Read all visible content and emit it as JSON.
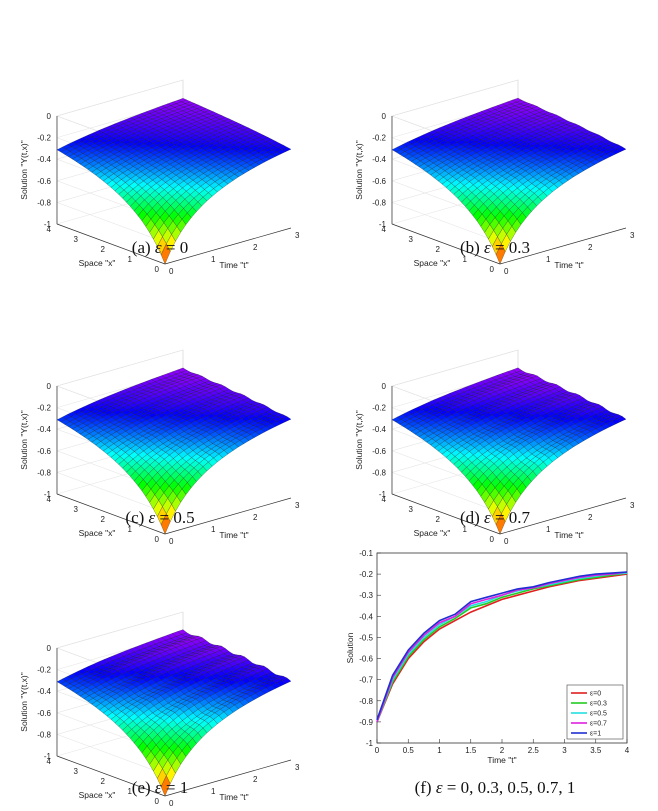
{
  "panels3d": [
    {
      "caption_prefix": "(a) ",
      "eps_symbol": "ε",
      "caption_value": " = 0",
      "eps": 0
    },
    {
      "caption_prefix": "(b) ",
      "eps_symbol": "ε",
      "caption_value": " = 0.3",
      "eps": 0.3
    },
    {
      "caption_prefix": "(c) ",
      "eps_symbol": "ε",
      "caption_value": " = 0.5",
      "eps": 0.5
    },
    {
      "caption_prefix": "(d) ",
      "eps_symbol": "ε",
      "caption_value": " = 0.7",
      "eps": 0.7
    },
    {
      "caption_prefix": "(e) ",
      "eps_symbol": "ε",
      "caption_value": " = 1",
      "eps": 1
    }
  ],
  "panel_f": {
    "caption_prefix": "(f) ",
    "eps_symbol": "ε",
    "caption_value": " = 0,  0.3,  0.5,  0.7,  1"
  },
  "labels3d": {
    "zlabel": "Solution \"Y(t,x)\"",
    "xlabel": "Space \"x\"",
    "tlabel": "Time \"t\"",
    "zticks": [
      "0",
      "-0.2",
      "-0.4",
      "-0.6",
      "-0.8",
      "-1"
    ],
    "xticks": [
      "4",
      "3",
      "2",
      "1",
      "0"
    ],
    "tticks": [
      "0",
      "1",
      "2",
      "3"
    ]
  },
  "colors": {
    "surface_colormap": "hsv",
    "edge": "#1a1a1a"
  },
  "chart_data": [
    {
      "type": "surface",
      "eps": 0,
      "xlabel": "Time \"t\"",
      "ylabel": "Space \"x\"",
      "zlabel": "Solution \"Y(t,x)\"",
      "xlim": [
        0,
        3
      ],
      "ylim": [
        0,
        4
      ],
      "zlim": [
        -1,
        0
      ],
      "grid": true
    },
    {
      "type": "surface",
      "eps": 0.3,
      "xlabel": "Time \"t\"",
      "ylabel": "Space \"x\"",
      "zlabel": "Solution \"Y(t,x)\"",
      "xlim": [
        0,
        3
      ],
      "ylim": [
        0,
        4
      ],
      "zlim": [
        -1,
        0
      ],
      "grid": true
    },
    {
      "type": "surface",
      "eps": 0.5,
      "xlabel": "Time \"t\"",
      "ylabel": "Space \"x\"",
      "zlabel": "Solution \"Y(t,x)\"",
      "xlim": [
        0,
        3
      ],
      "ylim": [
        0,
        4
      ],
      "zlim": [
        -1,
        0
      ],
      "grid": true
    },
    {
      "type": "surface",
      "eps": 0.7,
      "xlabel": "Time \"t\"",
      "ylabel": "Space \"x\"",
      "zlabel": "Solution \"Y(t,x)\"",
      "xlim": [
        0,
        3
      ],
      "ylim": [
        0,
        4
      ],
      "zlim": [
        -1,
        0
      ],
      "grid": true
    },
    {
      "type": "surface",
      "eps": 1,
      "xlabel": "Time \"t\"",
      "ylabel": "Space \"x\"",
      "zlabel": "Solution \"Y(t,x)\"",
      "xlim": [
        0,
        3
      ],
      "ylim": [
        0,
        4
      ],
      "zlim": [
        -1,
        0
      ],
      "grid": true
    },
    {
      "type": "line",
      "xlabel": "Time \"t\"",
      "ylabel": "Solution",
      "xlim": [
        0,
        4
      ],
      "ylim": [
        -1,
        -0.1
      ],
      "xticks": [
        "0",
        "0.5",
        "1",
        "1.5",
        "2",
        "2.5",
        "3",
        "3.5",
        "4"
      ],
      "yticks": [
        "-0.1",
        "-0.2",
        "-0.3",
        "-0.4",
        "-0.5",
        "-0.6",
        "-0.7",
        "-0.8",
        "-0.9",
        "-1"
      ],
      "legend_position": "bottom-right",
      "x": [
        0,
        0.25,
        0.5,
        0.75,
        1,
        1.25,
        1.5,
        1.75,
        2,
        2.25,
        2.5,
        2.75,
        3,
        3.25,
        3.5,
        3.75,
        4
      ],
      "series": [
        {
          "name": "ε=0",
          "color": "#e02020",
          "values": [
            -0.9,
            -0.72,
            -0.6,
            -0.52,
            -0.46,
            -0.42,
            -0.38,
            -0.35,
            -0.32,
            -0.3,
            -0.28,
            -0.26,
            -0.245,
            -0.23,
            -0.22,
            -0.21,
            -0.2
          ]
        },
        {
          "name": "ε=0.3",
          "color": "#22cc22",
          "values": [
            -0.9,
            -0.71,
            -0.59,
            -0.51,
            -0.45,
            -0.41,
            -0.36,
            -0.34,
            -0.31,
            -0.29,
            -0.27,
            -0.255,
            -0.24,
            -0.225,
            -0.215,
            -0.205,
            -0.195
          ]
        },
        {
          "name": "ε=0.5",
          "color": "#22e0e0",
          "values": [
            -0.9,
            -0.7,
            -0.58,
            -0.5,
            -0.44,
            -0.4,
            -0.35,
            -0.33,
            -0.3,
            -0.28,
            -0.265,
            -0.25,
            -0.235,
            -0.22,
            -0.21,
            -0.2,
            -0.195
          ]
        },
        {
          "name": "ε=0.7",
          "color": "#e020e0",
          "values": [
            -0.9,
            -0.69,
            -0.57,
            -0.49,
            -0.43,
            -0.4,
            -0.34,
            -0.32,
            -0.3,
            -0.275,
            -0.265,
            -0.245,
            -0.23,
            -0.215,
            -0.205,
            -0.2,
            -0.19
          ]
        },
        {
          "name": "ε=1",
          "color": "#2030d0",
          "values": [
            -0.89,
            -0.68,
            -0.56,
            -0.48,
            -0.42,
            -0.39,
            -0.33,
            -0.31,
            -0.29,
            -0.27,
            -0.26,
            -0.24,
            -0.225,
            -0.21,
            -0.2,
            -0.195,
            -0.19
          ]
        }
      ]
    }
  ]
}
